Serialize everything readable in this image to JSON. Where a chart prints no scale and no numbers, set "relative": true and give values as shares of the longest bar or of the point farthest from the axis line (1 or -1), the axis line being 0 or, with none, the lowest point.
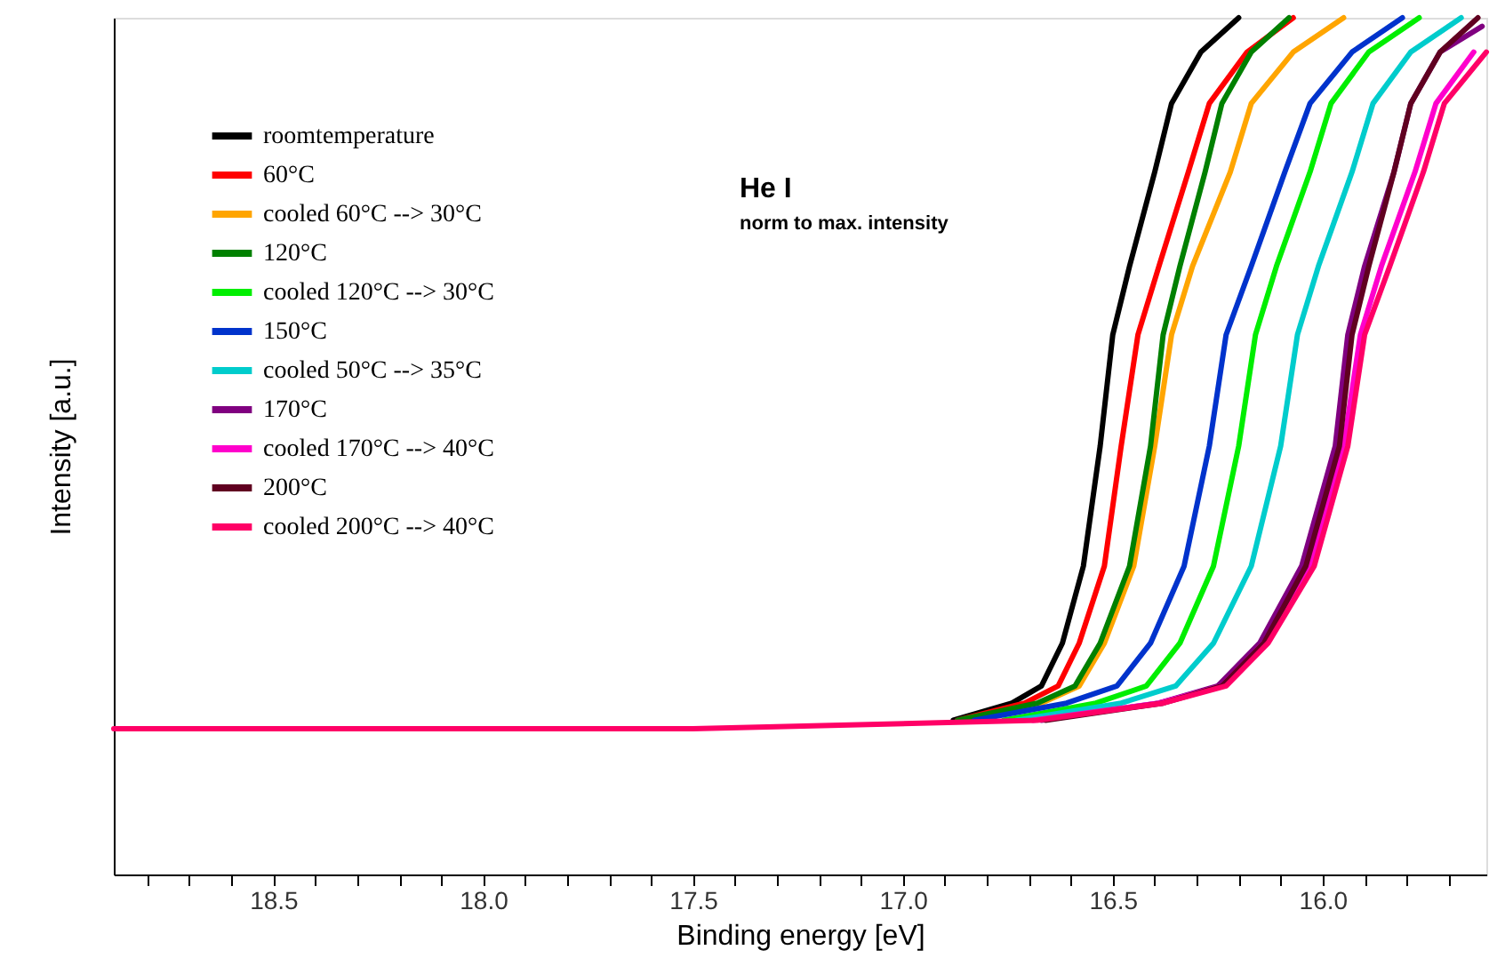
{
  "chart_data": {
    "type": "line",
    "xlabel": "Binding energy [eV]",
    "ylabel": "Intensity [a.u.]",
    "relative": true,
    "legend": "top left",
    "grid": false,
    "line_style": "solid",
    "marker": "none",
    "annotations": [
      "He I",
      "norm to max. intensity"
    ],
    "xlim": [
      18.88,
      15.61
    ],
    "xticks": [
      {
        "value": 18.8,
        "label": null
      },
      {
        "value": 18.7,
        "label": null
      },
      {
        "value": 18.6,
        "label": null
      },
      {
        "value": 18.5,
        "label": "18.5"
      },
      {
        "value": 18.4,
        "label": null
      },
      {
        "value": 18.3,
        "label": null
      },
      {
        "value": 18.2,
        "label": null
      },
      {
        "value": 18.1,
        "label": null
      },
      {
        "value": 18.0,
        "label": "18.0"
      },
      {
        "value": 17.9,
        "label": null
      },
      {
        "value": 17.8,
        "label": null
      },
      {
        "value": 17.7,
        "label": null
      },
      {
        "value": 17.6,
        "label": null
      },
      {
        "value": 17.5,
        "label": "17.5"
      },
      {
        "value": 17.4,
        "label": null
      },
      {
        "value": 17.3,
        "label": null
      },
      {
        "value": 17.2,
        "label": null
      },
      {
        "value": 17.1,
        "label": null
      },
      {
        "value": 17.0,
        "label": "17.0"
      },
      {
        "value": 16.9,
        "label": null
      },
      {
        "value": 16.8,
        "label": null
      },
      {
        "value": 16.7,
        "label": null
      },
      {
        "value": 16.6,
        "label": null
      },
      {
        "value": 16.5,
        "label": "16.5"
      },
      {
        "value": 16.4,
        "label": null
      },
      {
        "value": 16.3,
        "label": null
      },
      {
        "value": 16.2,
        "label": null
      },
      {
        "value": 16.1,
        "label": null
      },
      {
        "value": 16.0,
        "label": "16.0"
      },
      {
        "value": 15.9,
        "label": null
      },
      {
        "value": 15.8,
        "label": null
      },
      {
        "value": 15.7,
        "label": null
      }
    ],
    "series": [
      {
        "name": "roomtemperature",
        "color": "#000000",
        "x": [
          16.88,
          16.74,
          16.67,
          16.62,
          16.57,
          16.53,
          16.5,
          16.46,
          16.4,
          16.36,
          16.29,
          16.2
        ],
        "values": [
          0.18,
          0.2,
          0.22,
          0.27,
          0.36,
          0.5,
          0.63,
          0.71,
          0.82,
          0.9,
          0.96,
          1.0
        ]
      },
      {
        "name": "60°C",
        "color": "#ff0000",
        "x": [
          16.87,
          16.71,
          16.63,
          16.58,
          16.52,
          16.48,
          16.44,
          16.39,
          16.32,
          16.27,
          16.18,
          16.07
        ],
        "values": [
          0.18,
          0.2,
          0.22,
          0.27,
          0.36,
          0.5,
          0.63,
          0.71,
          0.82,
          0.9,
          0.96,
          1.0
        ]
      },
      {
        "name": "cooled       60°C --> 30°C",
        "color": "#ffa500",
        "x": [
          16.86,
          16.67,
          16.58,
          16.52,
          16.45,
          16.4,
          16.36,
          16.31,
          16.22,
          16.17,
          16.07,
          15.95
        ],
        "values": [
          0.18,
          0.2,
          0.22,
          0.27,
          0.36,
          0.5,
          0.63,
          0.71,
          0.82,
          0.9,
          0.96,
          1.0
        ]
      },
      {
        "name": "120°C",
        "color": "#008000",
        "x": [
          16.87,
          16.68,
          16.59,
          16.53,
          16.46,
          16.41,
          16.38,
          16.34,
          16.28,
          16.24,
          16.17,
          16.08
        ],
        "values": [
          0.18,
          0.2,
          0.22,
          0.27,
          0.36,
          0.5,
          0.63,
          0.71,
          0.82,
          0.9,
          0.96,
          1.0
        ]
      },
      {
        "name": "cooled       120°C --> 30°C",
        "color": "#00ee00",
        "x": [
          16.76,
          16.54,
          16.42,
          16.34,
          16.26,
          16.2,
          16.16,
          16.11,
          16.03,
          15.98,
          15.89,
          15.77
        ],
        "values": [
          0.18,
          0.2,
          0.22,
          0.27,
          0.36,
          0.5,
          0.63,
          0.71,
          0.82,
          0.9,
          0.96,
          1.0
        ]
      },
      {
        "name": "150°C",
        "color": "#0033cc",
        "x": [
          16.83,
          16.61,
          16.49,
          16.41,
          16.33,
          16.27,
          16.23,
          16.17,
          16.09,
          16.03,
          15.93,
          15.81
        ],
        "values": [
          0.18,
          0.2,
          0.22,
          0.27,
          0.36,
          0.5,
          0.63,
          0.71,
          0.82,
          0.9,
          0.96,
          1.0
        ]
      },
      {
        "name": "cooled        50°C --> 35°C",
        "color": "#00cccc",
        "x": [
          16.73,
          16.48,
          16.35,
          16.26,
          16.17,
          16.1,
          16.06,
          16.01,
          15.93,
          15.88,
          15.79,
          15.67
        ],
        "values": [
          0.18,
          0.2,
          0.22,
          0.27,
          0.36,
          0.5,
          0.63,
          0.71,
          0.82,
          0.9,
          0.96,
          1.0
        ]
      },
      {
        "name": "170°C",
        "color": "#800080",
        "x": [
          16.67,
          16.39,
          16.25,
          16.15,
          16.05,
          15.97,
          15.94,
          15.9,
          15.83,
          15.79,
          15.72,
          15.62
        ],
        "values": [
          0.18,
          0.2,
          0.22,
          0.27,
          0.36,
          0.5,
          0.63,
          0.71,
          0.82,
          0.9,
          0.96,
          0.99
        ]
      },
      {
        "name": "cooled       170°C --> 40°C",
        "color": "#ff00cc",
        "x": [
          16.69,
          16.39,
          16.24,
          16.14,
          16.03,
          15.95,
          15.91,
          15.86,
          15.78,
          15.73,
          15.64
        ],
        "values": [
          0.18,
          0.2,
          0.22,
          0.27,
          0.36,
          0.5,
          0.63,
          0.71,
          0.82,
          0.9,
          0.96
        ]
      },
      {
        "name": "200°C",
        "color": "#600020",
        "x": [
          16.66,
          16.38,
          16.24,
          16.14,
          16.04,
          15.96,
          15.93,
          15.89,
          15.83,
          15.79,
          15.72,
          15.63
        ],
        "values": [
          0.18,
          0.2,
          0.22,
          0.27,
          0.36,
          0.5,
          0.63,
          0.71,
          0.82,
          0.9,
          0.96,
          1.0
        ]
      },
      {
        "name": "cooled       200°C --> 40°C",
        "color": "#ff0066",
        "x": [
          18.88,
          17.5,
          16.68,
          16.38,
          16.23,
          16.13,
          16.02,
          15.94,
          15.9,
          15.84,
          15.76,
          15.71,
          15.61
        ],
        "values": [
          0.17,
          0.17,
          0.18,
          0.2,
          0.22,
          0.27,
          0.36,
          0.5,
          0.63,
          0.71,
          0.82,
          0.9,
          0.96
        ]
      }
    ]
  }
}
